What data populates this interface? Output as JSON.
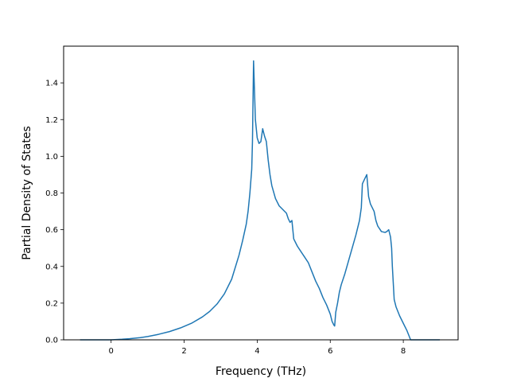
{
  "chart_data": {
    "type": "line",
    "title": "",
    "xlabel": "Frequency (THz)",
    "ylabel": "Partial Density of States",
    "xlim": [
      -1.3,
      9.5
    ],
    "ylim": [
      0.0,
      1.6
    ],
    "xticks": [
      0,
      2,
      4,
      6,
      8
    ],
    "yticks": [
      0.0,
      0.2,
      0.4,
      0.6,
      0.8,
      1.0,
      1.2,
      1.4
    ],
    "xtick_labels": [
      "0",
      "2",
      "4",
      "6",
      "8"
    ],
    "ytick_labels": [
      "0.0",
      "0.2",
      "0.4",
      "0.6",
      "0.8",
      "1.0",
      "1.2",
      "1.4"
    ],
    "grid": false,
    "legend": false,
    "series": [
      {
        "color": "#1f77b4",
        "x": [
          -0.85,
          -0.5,
          0.0,
          0.3,
          0.5,
          0.8,
          1.0,
          1.3,
          1.6,
          1.9,
          2.2,
          2.5,
          2.7,
          2.9,
          3.1,
          3.3,
          3.5,
          3.6,
          3.7,
          3.75,
          3.8,
          3.85,
          3.87,
          3.9,
          3.95,
          4.0,
          4.05,
          4.1,
          4.15,
          4.2,
          4.25,
          4.3,
          4.35,
          4.4,
          4.5,
          4.6,
          4.7,
          4.8,
          4.85,
          4.9,
          4.95,
          5.0,
          5.1,
          5.2,
          5.3,
          5.4,
          5.5,
          5.6,
          5.7,
          5.8,
          5.9,
          6.0,
          6.05,
          6.1,
          6.12,
          6.15,
          6.2,
          6.25,
          6.3,
          6.4,
          6.5,
          6.6,
          6.7,
          6.8,
          6.85,
          6.88,
          6.95,
          7.0,
          7.05,
          7.1,
          7.15,
          7.2,
          7.25,
          7.3,
          7.4,
          7.5,
          7.55,
          7.6,
          7.65,
          7.68,
          7.7,
          7.75,
          7.8,
          7.9,
          8.0,
          8.1,
          8.2,
          8.25,
          8.3,
          8.5,
          9.0
        ],
        "y": [
          0.0,
          0.0,
          0.0,
          0.003,
          0.006,
          0.012,
          0.018,
          0.03,
          0.045,
          0.065,
          0.09,
          0.125,
          0.155,
          0.195,
          0.25,
          0.33,
          0.46,
          0.54,
          0.63,
          0.7,
          0.8,
          0.93,
          1.08,
          1.52,
          1.2,
          1.1,
          1.07,
          1.08,
          1.15,
          1.11,
          1.08,
          0.98,
          0.9,
          0.84,
          0.77,
          0.73,
          0.71,
          0.69,
          0.66,
          0.64,
          0.65,
          0.55,
          0.51,
          0.48,
          0.45,
          0.42,
          0.37,
          0.32,
          0.28,
          0.23,
          0.19,
          0.14,
          0.1,
          0.08,
          0.075,
          0.15,
          0.2,
          0.26,
          0.3,
          0.36,
          0.43,
          0.5,
          0.57,
          0.65,
          0.72,
          0.85,
          0.88,
          0.9,
          0.78,
          0.74,
          0.72,
          0.7,
          0.65,
          0.62,
          0.59,
          0.585,
          0.59,
          0.6,
          0.56,
          0.5,
          0.4,
          0.22,
          0.18,
          0.13,
          0.09,
          0.05,
          0.0,
          0.0,
          0.0,
          0.0,
          0.0
        ]
      }
    ]
  }
}
